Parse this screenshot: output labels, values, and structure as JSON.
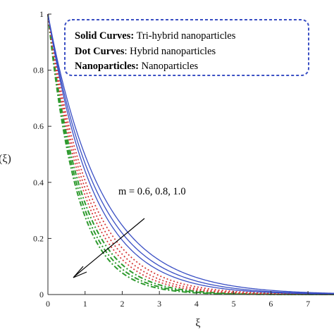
{
  "chart_data": {
    "type": "line",
    "xlabel": "ξ",
    "ylabel": "(ξ)",
    "xlim": [
      0,
      7.7
    ],
    "ylim": [
      0,
      1
    ],
    "x_ticks": [
      "0",
      "1",
      "2",
      "3",
      "4",
      "5",
      "6",
      "7"
    ],
    "y_ticks": [
      "0",
      "0.2",
      "0.4",
      "0.6",
      "0.8",
      "1"
    ],
    "legend": [
      {
        "bold": "Solid Curves:",
        "text": " Tri-hybrid nanoparticles"
      },
      {
        "bold": "Dot Curves",
        "text": ": Hybrid nanoparticles"
      },
      {
        "bold": "Nanoparticles:",
        "text": " Nanoparticles"
      }
    ],
    "annotation": "m = 0.6, 0.8, 1.0",
    "colors": {
      "tri_hybrid": "#3a4fc4",
      "hybrid": "#d63a3a",
      "nano": "#2e9a2e",
      "legend_border": "#3a4fc4"
    },
    "series": [
      {
        "family": "tri-hybrid",
        "style": "solid",
        "m": 0.6,
        "decay": 0.7
      },
      {
        "family": "tri-hybrid",
        "style": "solid",
        "m": 0.8,
        "decay": 0.76
      },
      {
        "family": "tri-hybrid",
        "style": "solid",
        "m": 1.0,
        "decay": 0.82
      },
      {
        "family": "hybrid",
        "style": "dotted",
        "m": 0.6,
        "decay": 0.9
      },
      {
        "family": "hybrid",
        "style": "dotted",
        "m": 0.8,
        "decay": 0.97
      },
      {
        "family": "hybrid",
        "style": "dotted",
        "m": 1.0,
        "decay": 1.04
      },
      {
        "family": "nano",
        "style": "dashdot",
        "m": 0.6,
        "decay": 1.12
      },
      {
        "family": "nano",
        "style": "dashdot",
        "m": 0.8,
        "decay": 1.2
      },
      {
        "family": "nano",
        "style": "dashdot",
        "m": 1.0,
        "decay": 1.28
      }
    ]
  }
}
